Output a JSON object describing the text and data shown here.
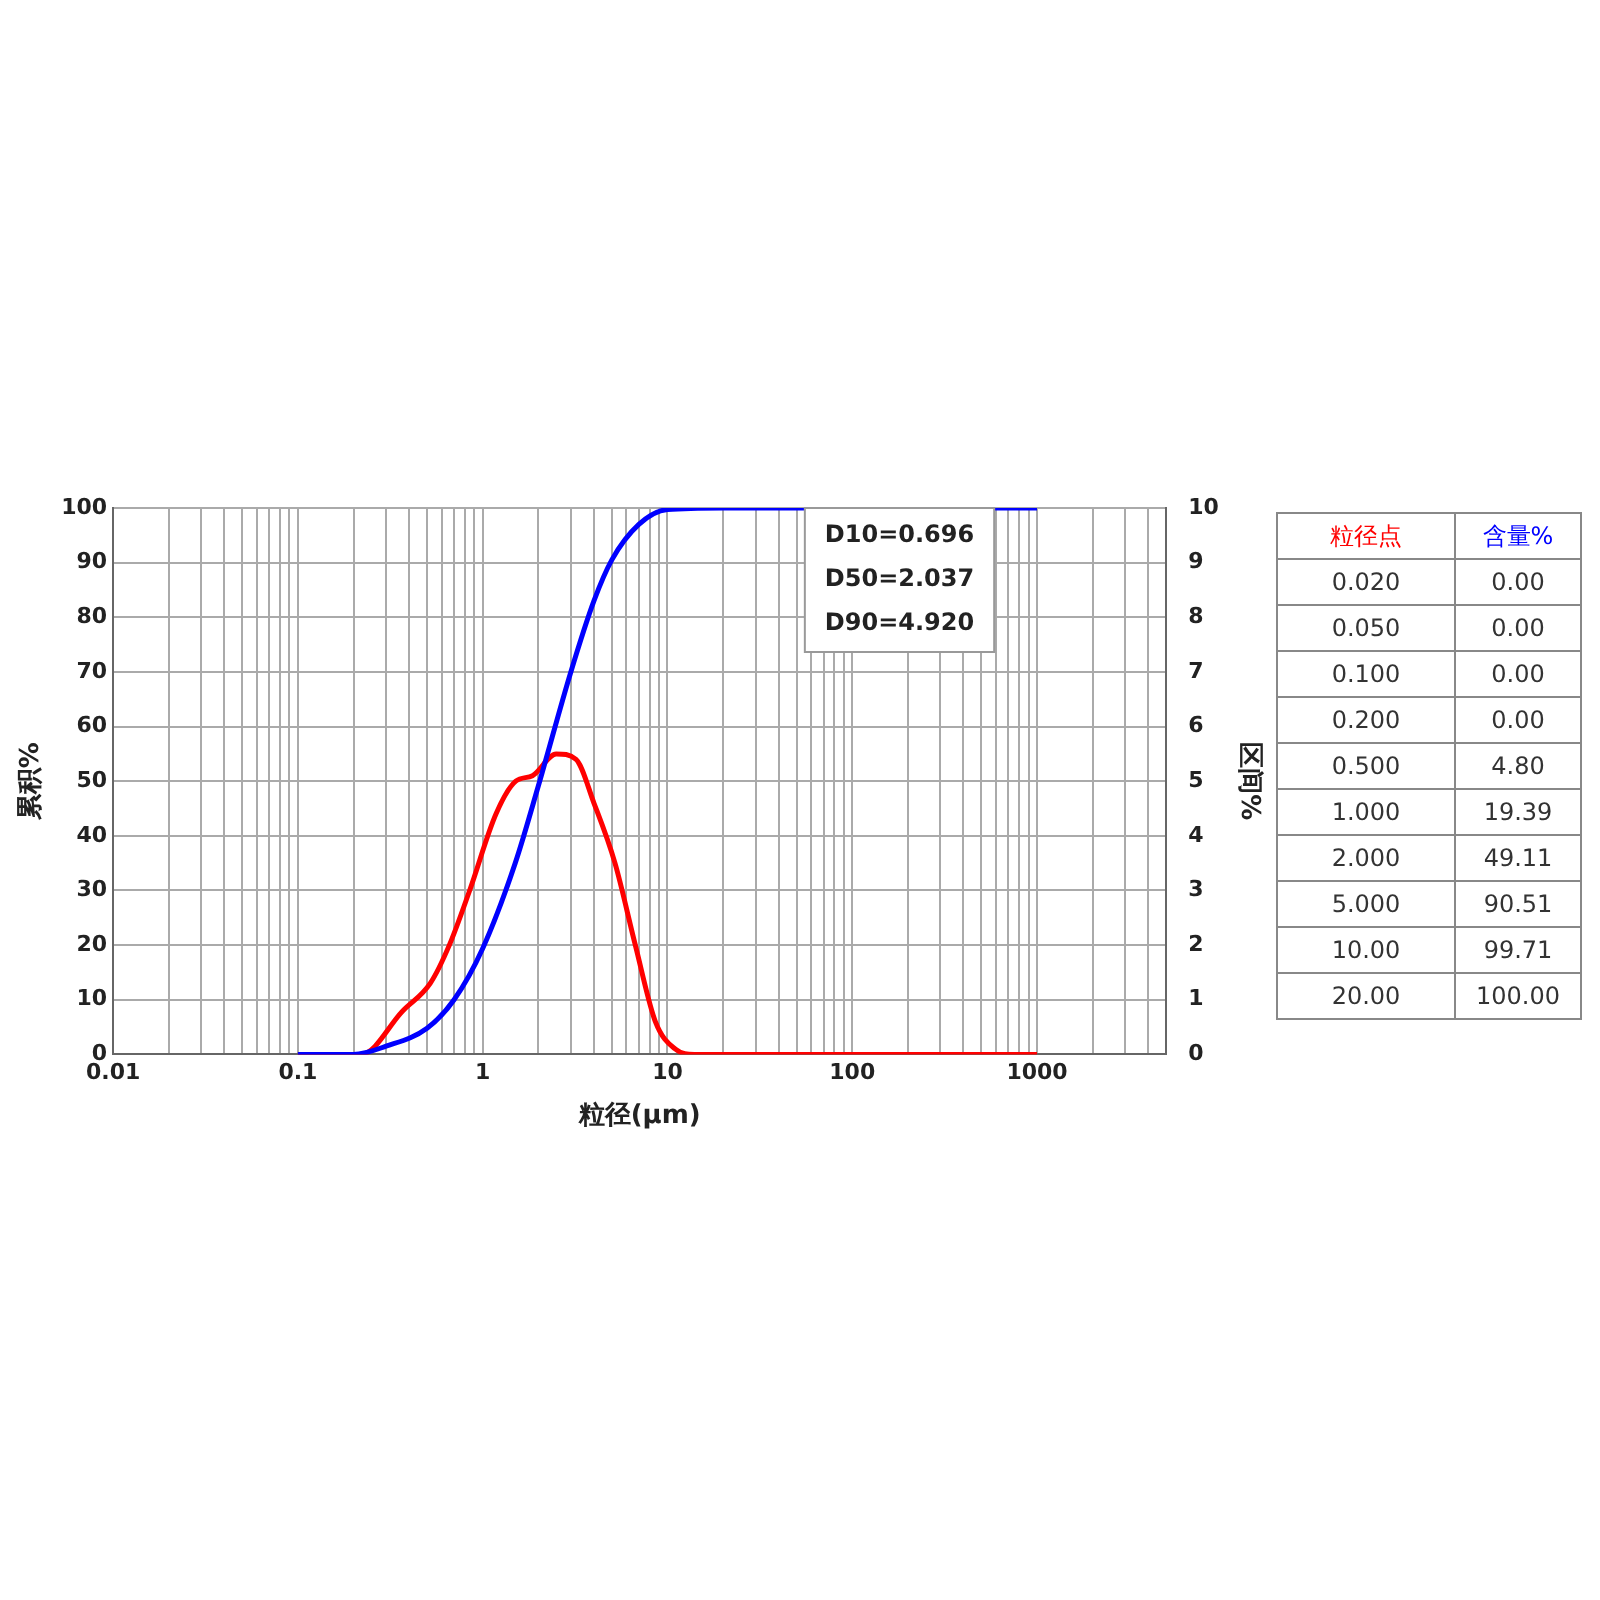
{
  "chart_data": {
    "type": "line",
    "xlabel": "粒径(μm)",
    "ylabel": "累积%",
    "y2label": "区间%",
    "log": "x",
    "grid": true,
    "legend": false,
    "marker": "none",
    "xlim": [
      0.01,
      5000
    ],
    "xticks": [
      0.01,
      {
        "value": 0.02,
        "label": null
      },
      {
        "value": 0.03,
        "label": null
      },
      {
        "value": 0.04,
        "label": null
      },
      {
        "value": 0.05,
        "label": null
      },
      {
        "value": 0.06,
        "label": null
      },
      {
        "value": 0.07,
        "label": null
      },
      {
        "value": 0.08,
        "label": null
      },
      {
        "value": 0.09,
        "label": null
      },
      0.1,
      {
        "value": 0.2,
        "label": null
      },
      {
        "value": 0.3,
        "label": null
      },
      {
        "value": 0.4,
        "label": null
      },
      {
        "value": 0.5,
        "label": null
      },
      {
        "value": 0.6,
        "label": null
      },
      {
        "value": 0.7,
        "label": null
      },
      {
        "value": 0.8,
        "label": null
      },
      {
        "value": 0.9,
        "label": null
      },
      1,
      {
        "value": 2,
        "label": null
      },
      {
        "value": 3,
        "label": null
      },
      {
        "value": 4,
        "label": null
      },
      {
        "value": 5,
        "label": null
      },
      {
        "value": 6,
        "label": null
      },
      {
        "value": 7,
        "label": null
      },
      {
        "value": 8,
        "label": null
      },
      {
        "value": 9,
        "label": null
      },
      10,
      {
        "value": 20,
        "label": null
      },
      {
        "value": 30,
        "label": null
      },
      {
        "value": 40,
        "label": null
      },
      {
        "value": 50,
        "label": null
      },
      {
        "value": 60,
        "label": null
      },
      {
        "value": 70,
        "label": null
      },
      {
        "value": 80,
        "label": null
      },
      {
        "value": 90,
        "label": null
      },
      100,
      {
        "value": 200,
        "label": null
      },
      {
        "value": 300,
        "label": null
      },
      {
        "value": 400,
        "label": null
      },
      {
        "value": 500,
        "label": null
      },
      {
        "value": 600,
        "label": null
      },
      {
        "value": 700,
        "label": null
      },
      {
        "value": 800,
        "label": null
      },
      {
        "value": 900,
        "label": null
      },
      1000,
      {
        "value": 2000,
        "label": null
      },
      {
        "value": 3000,
        "label": null
      },
      {
        "value": 4000,
        "label": null
      }
    ],
    "ylim": [
      0,
      100
    ],
    "yticks": [
      0,
      10,
      20,
      30,
      40,
      50,
      60,
      70,
      80,
      90,
      100
    ],
    "y2lim": [
      0,
      10
    ],
    "y2ticks": [
      0,
      1,
      2,
      3,
      4,
      5,
      6,
      7,
      8,
      9,
      10
    ],
    "series": [
      {
        "color": "#0000ff",
        "x": [
          0.1,
          0.2,
          0.3,
          0.5,
          0.7,
          1,
          1.5,
          2,
          3,
          4,
          5,
          7,
          10,
          20,
          1000
        ],
        "values": [
          0,
          0,
          1.5,
          4.8,
          10,
          19.39,
          35,
          49.11,
          70,
          83,
          90.51,
          97,
          99.71,
          100,
          100
        ]
      },
      {
        "color": "#ff0000",
        "axis": "y2",
        "x": [
          0.1,
          0.22,
          0.37,
          0.52,
          0.66,
          0.85,
          1.18,
          1.51,
          1.86,
          2.5,
          3.2,
          4,
          5.2,
          6.7,
          8.6,
          11,
          14,
          1000
        ],
        "values": [
          0,
          0,
          0.8,
          1.3,
          2,
          3,
          4.4,
          5,
          5.1,
          5.5,
          5.4,
          4.6,
          3.5,
          2,
          0.6,
          0.1,
          0,
          0
        ]
      }
    ],
    "annotations": [
      "D10=0.696",
      "D50=2.037",
      "D90=4.920",
      "粒径点",
      "含量%",
      "0.020",
      "0.00",
      "0.050",
      "0.00",
      "0.100",
      "0.00",
      "0.200",
      "0.00",
      "0.500",
      "4.80",
      "1.000",
      "19.39",
      "2.000",
      "49.11",
      "5.000",
      "90.51",
      "10.00",
      "99.71",
      "20.00",
      "100.00"
    ]
  }
}
